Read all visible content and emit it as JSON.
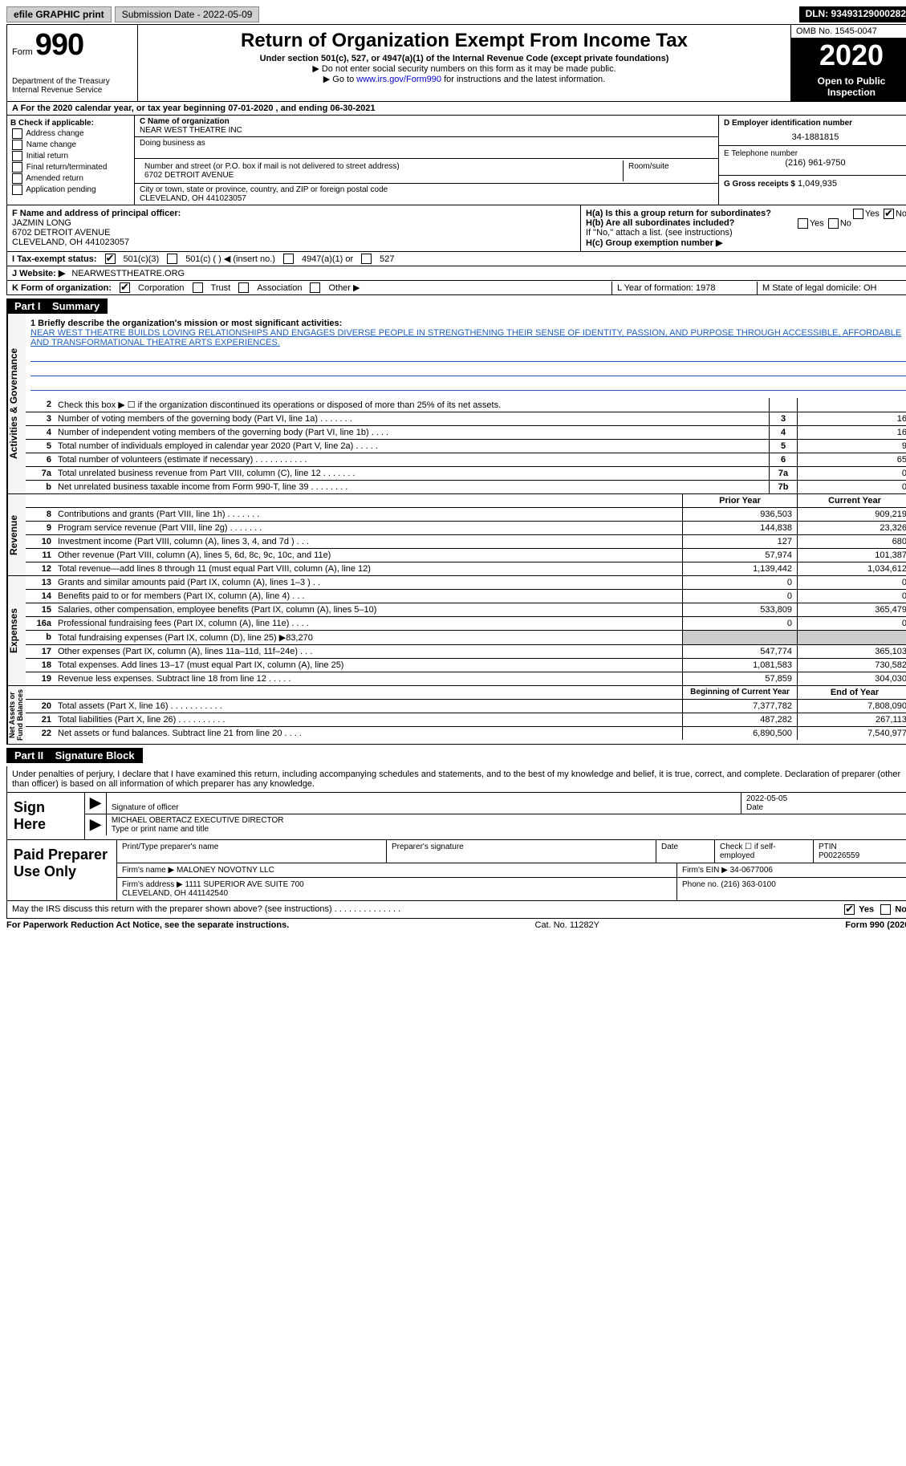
{
  "topbar": {
    "efile": "efile GRAPHIC print",
    "submission": "Submission Date - 2022-05-09",
    "dln": "DLN: 93493129000282"
  },
  "header": {
    "form_word": "Form",
    "form_num": "990",
    "title": "Return of Organization Exempt From Income Tax",
    "subtitle": "Under section 501(c), 527, or 4947(a)(1) of the Internal Revenue Code (except private foundations)",
    "note1": "▶ Do not enter social security numbers on this form as it may be made public.",
    "note2_pre": "▶ Go to ",
    "note2_link": "www.irs.gov/Form990",
    "note2_post": " for instructions and the latest information.",
    "dept": "Department of the Treasury\nInternal Revenue Service",
    "omb": "OMB No. 1545-0047",
    "year": "2020",
    "inspect": "Open to Public Inspection"
  },
  "row_a": "A For the 2020 calendar year, or tax year beginning 07-01-2020   , and ending 06-30-2021",
  "section_b": {
    "label": "B Check if applicable:",
    "items": [
      "Address change",
      "Name change",
      "Initial return",
      "Final return/terminated",
      "Amended return",
      "Application pending"
    ]
  },
  "section_c": {
    "name_label": "C Name of organization",
    "name": "NEAR WEST THEATRE INC",
    "dba_label": "Doing business as",
    "addr_label": "Number and street (or P.O. box if mail is not delivered to street address)",
    "room_label": "Room/suite",
    "addr": "6702 DETROIT AVENUE",
    "city_label": "City or town, state or province, country, and ZIP or foreign postal code",
    "city": "CLEVELAND, OH  441023057"
  },
  "section_d": {
    "label": "D Employer identification number",
    "value": "34-1881815"
  },
  "section_e": {
    "label": "E Telephone number",
    "value": "(216) 961-9750"
  },
  "section_g": {
    "label": "G Gross receipts $",
    "value": "1,049,935"
  },
  "section_f": {
    "label": "F Name and address of principal officer:",
    "name": "JAZMIN LONG",
    "addr1": "6702 DETROIT AVENUE",
    "addr2": "CLEVELAND, OH  441023057"
  },
  "section_h": {
    "ha": "H(a)  Is this a group return for subordinates?",
    "hb": "H(b)  Are all subordinates included?",
    "hb_note": "If \"No,\" attach a list. (see instructions)",
    "hc": "H(c)  Group exemption number ▶",
    "yes": "Yes",
    "no": "No"
  },
  "row_i": {
    "label": "I   Tax-exempt status:",
    "opts": [
      "501(c)(3)",
      "501(c) (   ) ◀ (insert no.)",
      "4947(a)(1) or",
      "527"
    ]
  },
  "row_j": {
    "label": "J   Website: ▶",
    "value": "NEARWESTTHEATRE.ORG"
  },
  "row_k": {
    "label": "K Form of organization:",
    "opts": [
      "Corporation",
      "Trust",
      "Association",
      "Other ▶"
    ],
    "l": "L Year of formation: 1978",
    "m": "M State of legal domicile: OH"
  },
  "part1": {
    "title": "Part I",
    "name": "Summary"
  },
  "mission": {
    "q1": "1   Briefly describe the organization's mission or most significant activities:",
    "text": "NEAR WEST THEATRE BUILDS LOVING RELATIONSHIPS AND ENGAGES DIVERSE PEOPLE IN STRENGTHENING THEIR SENSE OF IDENTITY, PASSION, AND PURPOSE THROUGH ACCESSIBLE, AFFORDABLE AND TRANSFORMATIONAL THEATRE ARTS EXPERIENCES."
  },
  "gov_lines": [
    {
      "n": "2",
      "d": "Check this box ▶ ☐  if the organization discontinued its operations or disposed of more than 25% of its net assets.",
      "box": "",
      "v": ""
    },
    {
      "n": "3",
      "d": "Number of voting members of the governing body (Part VI, line 1a)   .    .    .    .    .    .    .",
      "box": "3",
      "v": "16"
    },
    {
      "n": "4",
      "d": "Number of independent voting members of the governing body (Part VI, line 1b)   .    .    .    .",
      "box": "4",
      "v": "16"
    },
    {
      "n": "5",
      "d": "Total number of individuals employed in calendar year 2020 (Part V, line 2a)   .    .    .    .    .",
      "box": "5",
      "v": "9"
    },
    {
      "n": "6",
      "d": "Total number of volunteers (estimate if necessary)   .    .    .    .    .    .    .    .    .    .    .",
      "box": "6",
      "v": "65"
    },
    {
      "n": "7a",
      "d": "Total unrelated business revenue from Part VIII, column (C), line 12   .    .    .    .    .    .    .",
      "box": "7a",
      "v": "0"
    },
    {
      "n": "b",
      "d": "Net unrelated business taxable income from Form 990-T, line 39   .    .    .    .    .    .    .    .",
      "box": "7b",
      "v": "0"
    }
  ],
  "col_headers": {
    "prior": "Prior Year",
    "current": "Current Year"
  },
  "revenue": [
    {
      "n": "8",
      "d": "Contributions and grants (Part VIII, line 1h)   .    .    .    .    .    .    .",
      "p": "936,503",
      "c": "909,219"
    },
    {
      "n": "9",
      "d": "Program service revenue (Part VIII, line 2g)   .    .    .    .    .    .    .",
      "p": "144,838",
      "c": "23,326"
    },
    {
      "n": "10",
      "d": "Investment income (Part VIII, column (A), lines 3, 4, and 7d )   .    .    .",
      "p": "127",
      "c": "680"
    },
    {
      "n": "11",
      "d": "Other revenue (Part VIII, column (A), lines 5, 6d, 8c, 9c, 10c, and 11e)",
      "p": "57,974",
      "c": "101,387"
    },
    {
      "n": "12",
      "d": "Total revenue—add lines 8 through 11 (must equal Part VIII, column (A), line 12)",
      "p": "1,139,442",
      "c": "1,034,612"
    }
  ],
  "expenses": [
    {
      "n": "13",
      "d": "Grants and similar amounts paid (Part IX, column (A), lines 1–3 )   .    .",
      "p": "0",
      "c": "0"
    },
    {
      "n": "14",
      "d": "Benefits paid to or for members (Part IX, column (A), line 4)   .    .    .",
      "p": "0",
      "c": "0"
    },
    {
      "n": "15",
      "d": "Salaries, other compensation, employee benefits (Part IX, column (A), lines 5–10)",
      "p": "533,809",
      "c": "365,479"
    },
    {
      "n": "16a",
      "d": "Professional fundraising fees (Part IX, column (A), line 11e)   .    .    .    .",
      "p": "0",
      "c": "0"
    },
    {
      "n": "b",
      "d": "Total fundraising expenses (Part IX, column (D), line 25) ▶83,270",
      "p": "",
      "c": "",
      "shade": true
    },
    {
      "n": "17",
      "d": "Other expenses (Part IX, column (A), lines 11a–11d, 11f–24e)   .    .    .",
      "p": "547,774",
      "c": "365,103"
    },
    {
      "n": "18",
      "d": "Total expenses. Add lines 13–17 (must equal Part IX, column (A), line 25)",
      "p": "1,081,583",
      "c": "730,582"
    },
    {
      "n": "19",
      "d": "Revenue less expenses. Subtract line 18 from line 12   .    .    .    .    .",
      "p": "57,859",
      "c": "304,030"
    }
  ],
  "net_headers": {
    "beg": "Beginning of Current Year",
    "end": "End of Year"
  },
  "net": [
    {
      "n": "20",
      "d": "Total assets (Part X, line 16)   .    .    .    .    .    .    .    .    .    .    .",
      "p": "7,377,782",
      "c": "7,808,090"
    },
    {
      "n": "21",
      "d": "Total liabilities (Part X, line 26)   .    .    .    .    .    .    .    .    .    .",
      "p": "487,282",
      "c": "267,113"
    },
    {
      "n": "22",
      "d": "Net assets or fund balances. Subtract line 21 from line 20   .    .    .    .",
      "p": "6,890,500",
      "c": "7,540,977"
    }
  ],
  "vtabs": {
    "gov": "Activities & Governance",
    "rev": "Revenue",
    "exp": "Expenses",
    "net": "Net Assets or\nFund Balances"
  },
  "part2": {
    "title": "Part II",
    "name": "Signature Block"
  },
  "sig": {
    "decl": "Under penalties of perjury, I declare that I have examined this return, including accompanying schedules and statements, and to the best of my knowledge and belief, it is true, correct, and complete. Declaration of preparer (other than officer) is based on all information of which preparer has any knowledge.",
    "sign_here": "Sign Here",
    "sig_officer": "Signature of officer",
    "date": "Date",
    "date_val": "2022-05-05",
    "name_title": "MICHAEL OBERTACZ  EXECUTIVE DIRECTOR",
    "type_name": "Type or print name and title"
  },
  "prep": {
    "label": "Paid Preparer Use Only",
    "print_name": "Print/Type preparer's name",
    "prep_sig": "Preparer's signature",
    "date": "Date",
    "check": "Check ☐ if self-employed",
    "ptin_label": "PTIN",
    "ptin": "P00226559",
    "firm_name_label": "Firm's name    ▶",
    "firm_name": "MALONEY NOVOTNY LLC",
    "firm_ein_label": "Firm's EIN ▶",
    "firm_ein": "34-0677006",
    "firm_addr_label": "Firm's address ▶",
    "firm_addr": "1111 SUPERIOR AVE SUITE 700\nCLEVELAND, OH  441142540",
    "phone_label": "Phone no.",
    "phone": "(216) 363-0100"
  },
  "footer": {
    "q": "May the IRS discuss this return with the preparer shown above? (see instructions)   .    .    .    .    .    .    .    .    .    .    .    .    .    .",
    "yes": "Yes",
    "no": "No"
  },
  "last": {
    "l": "For Paperwork Reduction Act Notice, see the separate instructions.",
    "c": "Cat. No. 11282Y",
    "r": "Form 990 (2020)"
  }
}
